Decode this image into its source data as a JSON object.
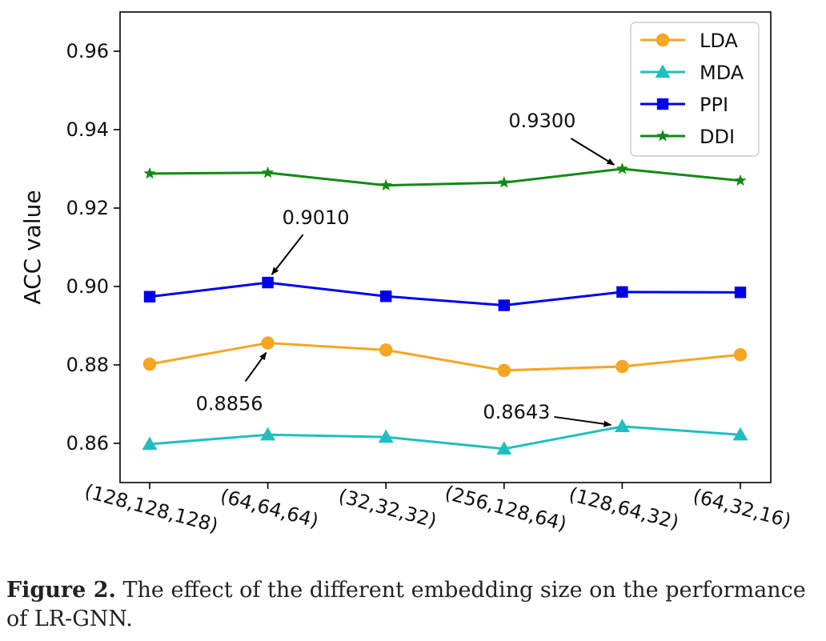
{
  "chart_data": {
    "type": "line",
    "title": "",
    "xlabel": "",
    "ylabel": "ACC value",
    "categories": [
      "(128,128,128)",
      "(64,64,64)",
      "(32,32,32)",
      "(256,128,64)",
      "(128,64,32)",
      "(64,32,16)"
    ],
    "ylim": [
      0.85,
      0.97
    ],
    "yticks": [
      0.86,
      0.88,
      0.9,
      0.92,
      0.94,
      0.96
    ],
    "ytick_labels": [
      "0.86",
      "0.88",
      "0.90",
      "0.92",
      "0.94",
      "0.96"
    ],
    "grid": false,
    "legend_position": "top-right",
    "series": [
      {
        "name": "LDA",
        "marker": "circle",
        "color": "#f5a623",
        "values": [
          0.8802,
          0.8856,
          0.8838,
          0.8786,
          0.8796,
          0.8826
        ]
      },
      {
        "name": "MDA",
        "marker": "triangle",
        "color": "#1fbfbf",
        "values": [
          0.8598,
          0.8622,
          0.8616,
          0.8586,
          0.8643,
          0.8622
        ]
      },
      {
        "name": "PPI",
        "marker": "square",
        "color": "#0000ee",
        "values": [
          0.8974,
          0.901,
          0.8975,
          0.8952,
          0.8986,
          0.8985
        ]
      },
      {
        "name": "DDI",
        "marker": "star",
        "color": "#138a13",
        "values": [
          0.9288,
          0.929,
          0.9258,
          0.9265,
          0.93,
          0.927
        ]
      }
    ],
    "annotations": [
      {
        "text": "0.9300",
        "series": "DDI",
        "category_index": 4
      },
      {
        "text": "0.9010",
        "series": "PPI",
        "category_index": 1
      },
      {
        "text": "0.8856",
        "series": "LDA",
        "category_index": 1
      },
      {
        "text": "0.8643",
        "series": "MDA",
        "category_index": 4
      }
    ]
  },
  "caption": {
    "label": "Figure 2.",
    "text": " The effect of the different embedding size on the performance of LR-GNN."
  }
}
